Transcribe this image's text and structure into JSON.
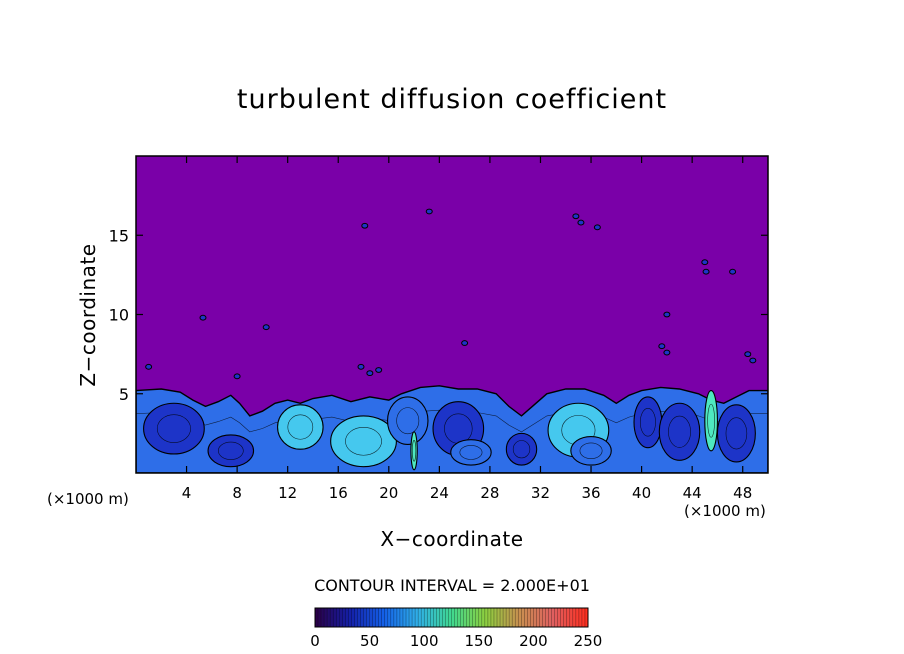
{
  "colors": {
    "background_fill": "#7a00a8",
    "frame": "#000000",
    "turbulence_dark": "#1d34c8",
    "turbulence_mid": "#2e6ee8",
    "turbulence_light": "#45c8ee",
    "turbulence_peak": "#4ee8c0",
    "contour_line": "#000000"
  },
  "chart_data": {
    "type": "heatmap",
    "title": "turbulent diffusion coefficient",
    "xlabel": "X−coordinate",
    "ylabel": "Z−coordinate",
    "x_unit_left": "(×1000 m)",
    "x_unit_right": "(×1000 m)",
    "xlim": [
      0,
      50
    ],
    "ylim": [
      0,
      20
    ],
    "x_ticks": [
      4,
      8,
      12,
      16,
      20,
      24,
      28,
      32,
      36,
      40,
      44,
      48
    ],
    "x_tick_labels": [
      "4",
      "8",
      "12",
      "16",
      "20",
      "24",
      "28",
      "32",
      "36",
      "40",
      "44",
      "48"
    ],
    "y_ticks": [
      5,
      10,
      15
    ],
    "y_tick_labels": [
      "5",
      "10",
      "15"
    ],
    "contour_interval_text": "CONTOUR INTERVAL = 2.000E+01",
    "colorbar": {
      "min": 0,
      "max": 250,
      "ticks": [
        0,
        50,
        100,
        150,
        200,
        250
      ],
      "tick_labels": [
        "0",
        "50",
        "100",
        "150",
        "200",
        "250"
      ],
      "stops": [
        "#2a004a",
        "#1420a8",
        "#1460e8",
        "#30b0e8",
        "#40d890",
        "#8cd040",
        "#c89050",
        "#e06060",
        "#ff3020"
      ]
    },
    "boundary_layer": {
      "description_free": true,
      "top_profile": [
        [
          0,
          5.2
        ],
        [
          2,
          5.3
        ],
        [
          3.5,
          5.1
        ],
        [
          4.5,
          4.6
        ],
        [
          5.5,
          4.2
        ],
        [
          6.5,
          4.5
        ],
        [
          7.5,
          4.9
        ],
        [
          8.2,
          4.4
        ],
        [
          9,
          3.6
        ],
        [
          10,
          3.9
        ],
        [
          11,
          4.4
        ],
        [
          12,
          4.6
        ],
        [
          13,
          4.4
        ],
        [
          14,
          4.7
        ],
        [
          15.5,
          4.9
        ],
        [
          17,
          4.5
        ],
        [
          18.5,
          4.8
        ],
        [
          20,
          4.6
        ],
        [
          21,
          5.0
        ],
        [
          22.5,
          5.4
        ],
        [
          24,
          5.5
        ],
        [
          25.5,
          5.3
        ],
        [
          27,
          5.3
        ],
        [
          28.5,
          5.0
        ],
        [
          29.5,
          4.2
        ],
        [
          30.5,
          3.6
        ],
        [
          31.5,
          4.3
        ],
        [
          32.5,
          5.0
        ],
        [
          34,
          5.3
        ],
        [
          35.5,
          5.3
        ],
        [
          37,
          4.9
        ],
        [
          38,
          4.4
        ],
        [
          39,
          4.9
        ],
        [
          40,
          5.2
        ],
        [
          41.5,
          5.4
        ],
        [
          43,
          5.3
        ],
        [
          44.5,
          5.0
        ],
        [
          45.5,
          4.6
        ],
        [
          46.5,
          4.4
        ],
        [
          47.5,
          4.8
        ],
        [
          48.5,
          5.2
        ],
        [
          50,
          5.2
        ]
      ],
      "eddies": [
        {
          "x": 3.0,
          "z": 2.8,
          "rx": 2.4,
          "rz": 1.6,
          "level": "dark"
        },
        {
          "x": 7.5,
          "z": 1.4,
          "rx": 1.8,
          "rz": 1.0,
          "level": "dark"
        },
        {
          "x": 13.0,
          "z": 2.9,
          "rx": 1.8,
          "rz": 1.4,
          "level": "light"
        },
        {
          "x": 18.0,
          "z": 2.0,
          "rx": 2.6,
          "rz": 1.6,
          "level": "light"
        },
        {
          "x": 21.5,
          "z": 3.3,
          "rx": 1.6,
          "rz": 1.5,
          "level": "mid"
        },
        {
          "x": 25.5,
          "z": 2.8,
          "rx": 2.0,
          "rz": 1.7,
          "level": "dark"
        },
        {
          "x": 26.5,
          "z": 1.3,
          "rx": 1.6,
          "rz": 0.8,
          "level": "mid"
        },
        {
          "x": 30.5,
          "z": 1.5,
          "rx": 1.2,
          "rz": 1.0,
          "level": "dark"
        },
        {
          "x": 35.0,
          "z": 2.7,
          "rx": 2.4,
          "rz": 1.7,
          "level": "light"
        },
        {
          "x": 36.0,
          "z": 1.4,
          "rx": 1.6,
          "rz": 0.9,
          "level": "mid"
        },
        {
          "x": 40.5,
          "z": 3.2,
          "rx": 1.1,
          "rz": 1.6,
          "level": "dark"
        },
        {
          "x": 43.0,
          "z": 2.6,
          "rx": 1.6,
          "rz": 1.8,
          "level": "dark"
        },
        {
          "x": 45.5,
          "z": 3.3,
          "rx": 0.5,
          "rz": 1.9,
          "level": "peak"
        },
        {
          "x": 47.5,
          "z": 2.5,
          "rx": 1.5,
          "rz": 1.8,
          "level": "dark"
        },
        {
          "x": 22.0,
          "z": 1.4,
          "rx": 0.25,
          "rz": 1.2,
          "level": "peak"
        }
      ],
      "spots": [
        {
          "x": 1.0,
          "z": 6.7
        },
        {
          "x": 5.3,
          "z": 9.8
        },
        {
          "x": 10.3,
          "z": 9.2
        },
        {
          "x": 18.1,
          "z": 15.6
        },
        {
          "x": 17.8,
          "z": 6.7
        },
        {
          "x": 18.5,
          "z": 6.3
        },
        {
          "x": 19.2,
          "z": 6.5
        },
        {
          "x": 23.2,
          "z": 16.5
        },
        {
          "x": 26.0,
          "z": 8.2
        },
        {
          "x": 34.8,
          "z": 16.2
        },
        {
          "x": 35.2,
          "z": 15.8
        },
        {
          "x": 36.5,
          "z": 15.5
        },
        {
          "x": 42.0,
          "z": 10.0
        },
        {
          "x": 41.6,
          "z": 8.0
        },
        {
          "x": 42.0,
          "z": 7.6
        },
        {
          "x": 45.0,
          "z": 13.3
        },
        {
          "x": 45.1,
          "z": 12.7
        },
        {
          "x": 47.2,
          "z": 12.7
        },
        {
          "x": 48.4,
          "z": 7.5
        },
        {
          "x": 48.8,
          "z": 7.1
        },
        {
          "x": 8.0,
          "z": 6.1
        }
      ]
    }
  }
}
